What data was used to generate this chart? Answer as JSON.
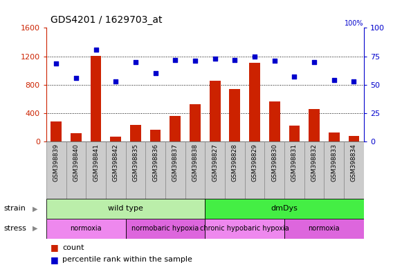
{
  "title": "GDS4201 / 1629703_at",
  "samples": [
    "GSM398839",
    "GSM398840",
    "GSM398841",
    "GSM398842",
    "GSM398835",
    "GSM398836",
    "GSM398837",
    "GSM398838",
    "GSM398827",
    "GSM398828",
    "GSM398829",
    "GSM398830",
    "GSM398831",
    "GSM398832",
    "GSM398833",
    "GSM398834"
  ],
  "counts": [
    290,
    120,
    1210,
    70,
    240,
    170,
    360,
    530,
    860,
    740,
    1110,
    570,
    230,
    460,
    130,
    80
  ],
  "percentile": [
    69,
    56,
    81,
    53,
    70,
    60,
    72,
    71,
    73,
    72,
    75,
    71,
    57,
    70,
    54,
    53
  ],
  "ylim_left": [
    0,
    1600
  ],
  "ylim_right": [
    0,
    100
  ],
  "yticks_left": [
    0,
    400,
    800,
    1200,
    1600
  ],
  "yticks_right": [
    0,
    25,
    50,
    75,
    100
  ],
  "strain_groups": [
    {
      "text": "wild type",
      "start": 0,
      "end": 8,
      "color": "#bbeeaa"
    },
    {
      "text": "dmDys",
      "start": 8,
      "end": 16,
      "color": "#44ee44"
    }
  ],
  "stress_groups": [
    {
      "text": "normoxia",
      "start": 0,
      "end": 4,
      "color": "#ee88ee"
    },
    {
      "text": "normobaric hypoxia",
      "start": 4,
      "end": 8,
      "color": "#dd66dd"
    },
    {
      "text": "chronic hypobaric hypoxia",
      "start": 8,
      "end": 12,
      "color": "#ee88ee"
    },
    {
      "text": "normoxia",
      "start": 12,
      "end": 16,
      "color": "#dd66dd"
    }
  ],
  "bar_color": "#cc2200",
  "scatter_color": "#0000cc",
  "tick_color_left": "#cc2200",
  "tick_color_right": "#0000cc",
  "xticklabel_bg": "#cccccc",
  "xticklabel_border": "#888888"
}
